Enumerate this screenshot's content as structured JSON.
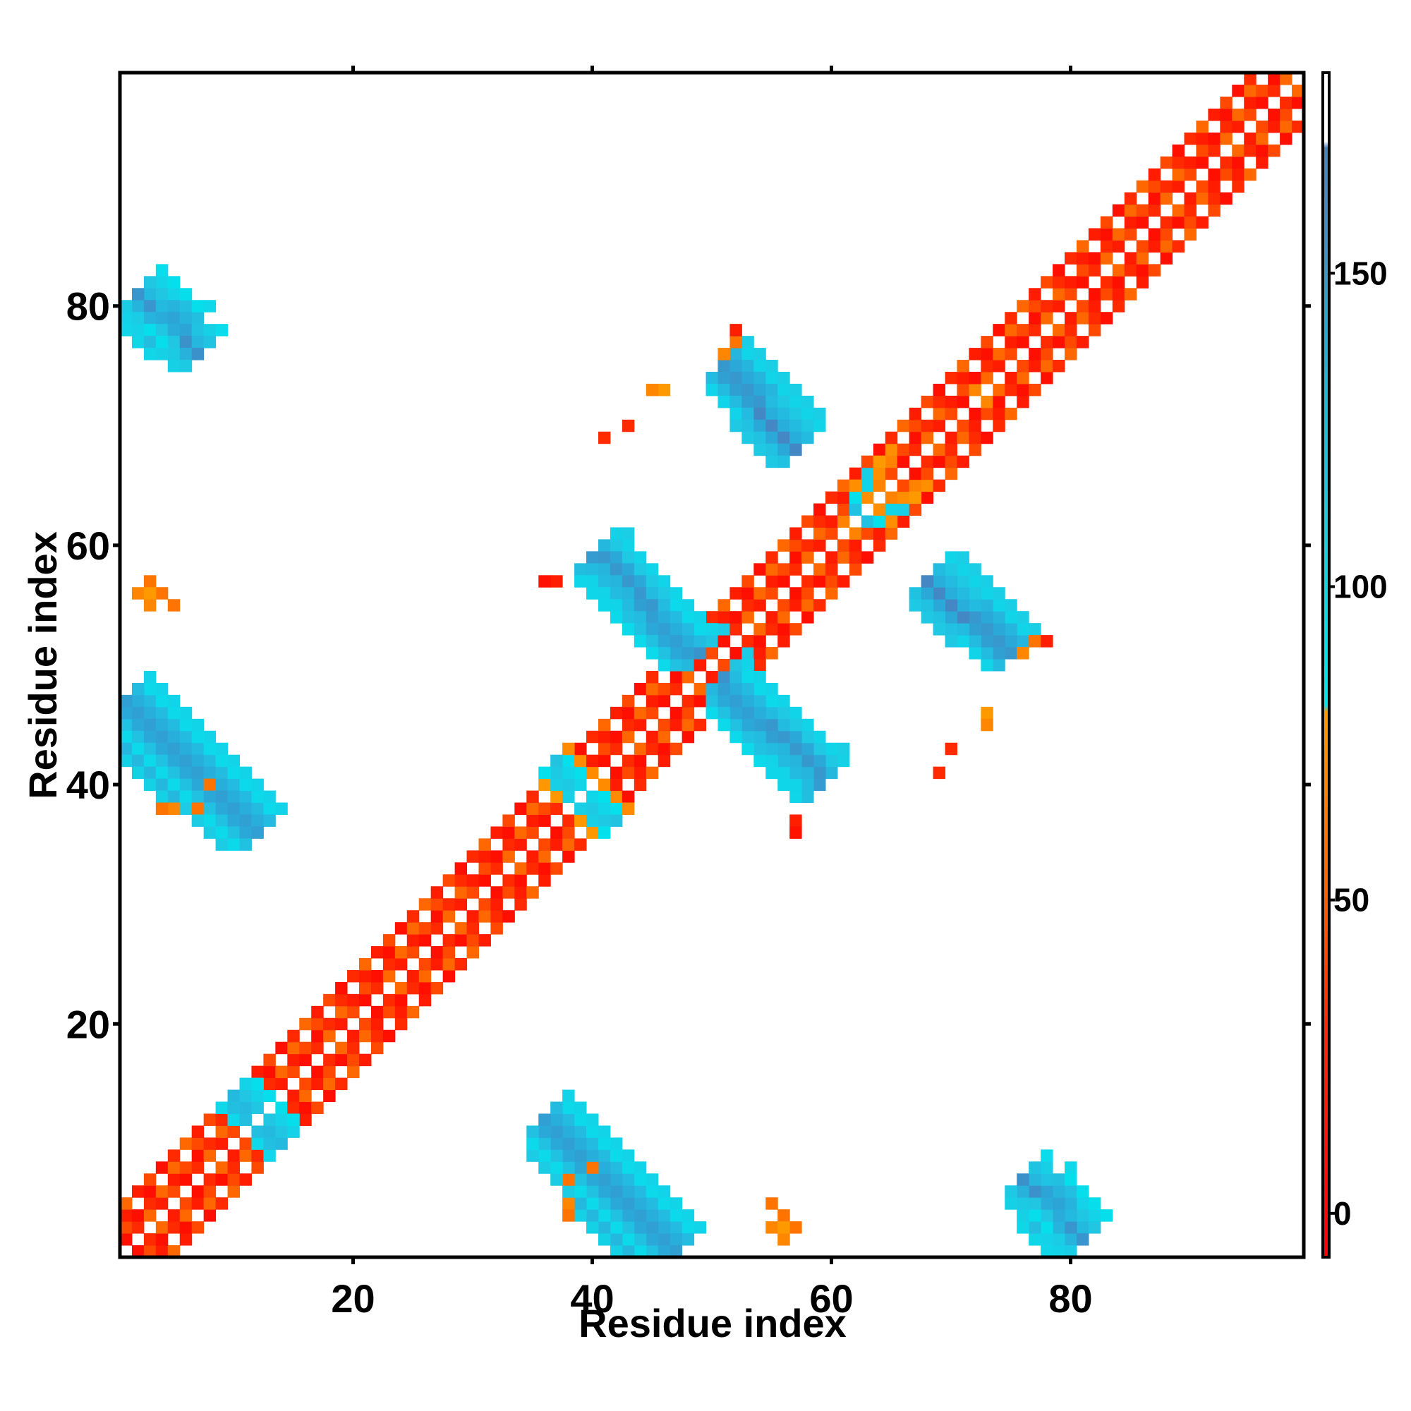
{
  "chart_data": {
    "type": "heatmap",
    "title": "",
    "xlabel": "Residue index",
    "ylabel": "Residue index",
    "xlim": [
      0.5,
      99.5
    ],
    "ylim": [
      0.5,
      99.5
    ],
    "x_ticks": [
      20,
      40,
      60,
      80
    ],
    "y_ticks": [
      20,
      40,
      60,
      80
    ],
    "grid": false,
    "colorbar": {
      "ticks": [
        0,
        50,
        100,
        150
      ],
      "range": [
        -7,
        182
      ],
      "stops": [
        {
          "value": -7,
          "color": "#ff0000"
        },
        {
          "value": 30,
          "color": "#ff2a00"
        },
        {
          "value": 55,
          "color": "#ff6a00"
        },
        {
          "value": 80,
          "color": "#ff9900"
        },
        {
          "value": 81,
          "color": "#00e5ee"
        },
        {
          "value": 110,
          "color": "#1fc8e3"
        },
        {
          "value": 140,
          "color": "#2aa8d8"
        },
        {
          "value": 170,
          "color": "#4a7fc0"
        },
        {
          "value": 171,
          "color": "#ffffff"
        },
        {
          "value": 182,
          "color": "#ffffff"
        }
      ]
    },
    "features": [
      {
        "kind": "diagonal",
        "from": 1,
        "to": 99,
        "value": 30
      },
      {
        "kind": "band",
        "start": [
          2,
          80
        ],
        "end": [
          7,
          76
        ],
        "width": 2.5,
        "value": 150
      },
      {
        "kind": "band",
        "start": [
          1,
          45
        ],
        "end": [
          11,
          36
        ],
        "width": 2.5,
        "value": 155
      },
      {
        "kind": "band",
        "start": [
          36,
          12
        ],
        "end": [
          47,
          1
        ],
        "width": 2.5,
        "value": 152
      },
      {
        "kind": "band",
        "start": [
          40,
          59
        ],
        "end": [
          49,
          51
        ],
        "width": 2.5,
        "value": 155
      },
      {
        "kind": "band",
        "start": [
          51,
          48
        ],
        "end": [
          59,
          41
        ],
        "width": 2.5,
        "value": 152
      },
      {
        "kind": "band",
        "start": [
          51,
          75
        ],
        "end": [
          57,
          69
        ],
        "width": 2.5,
        "value": 158
      },
      {
        "kind": "band",
        "start": [
          68,
          57
        ],
        "end": [
          75,
          51
        ],
        "width": 2.5,
        "value": 158
      },
      {
        "kind": "band",
        "start": [
          78,
          6
        ],
        "end": [
          81,
          2
        ],
        "width": 2.5,
        "value": 148
      },
      {
        "kind": "band",
        "start": [
          11,
          14
        ],
        "end": [
          14,
          10
        ],
        "width": 1.5,
        "value": 130
      },
      {
        "kind": "band",
        "start": [
          37,
          42
        ],
        "end": [
          41,
          37
        ],
        "width": 2,
        "value": 115
      },
      {
        "kind": "band",
        "start": [
          64,
          67
        ],
        "end": [
          62,
          62
        ],
        "width": 1.5,
        "value": 110
      },
      {
        "kind": "points",
        "value": 60,
        "cells": [
          [
            52,
            77
          ],
          [
            51,
            76
          ],
          [
            8,
            40
          ],
          [
            7,
            38
          ],
          [
            55,
            3
          ],
          [
            56,
            2
          ],
          [
            57,
            3
          ],
          [
            38,
            5
          ],
          [
            38,
            4
          ],
          [
            72,
            72
          ],
          [
            73,
            72
          ],
          [
            4,
            56
          ],
          [
            5,
            55
          ],
          [
            3,
            56
          ],
          [
            73,
            46
          ],
          [
            73,
            45
          ]
        ]
      },
      {
        "kind": "points",
        "value": 10,
        "cells": [
          [
            52,
            78
          ],
          [
            78,
            52
          ],
          [
            57,
            37
          ],
          [
            36,
            57
          ],
          [
            43,
            70
          ],
          [
            70,
            43
          ],
          [
            41,
            69
          ],
          [
            69,
            41
          ]
        ]
      }
    ]
  }
}
